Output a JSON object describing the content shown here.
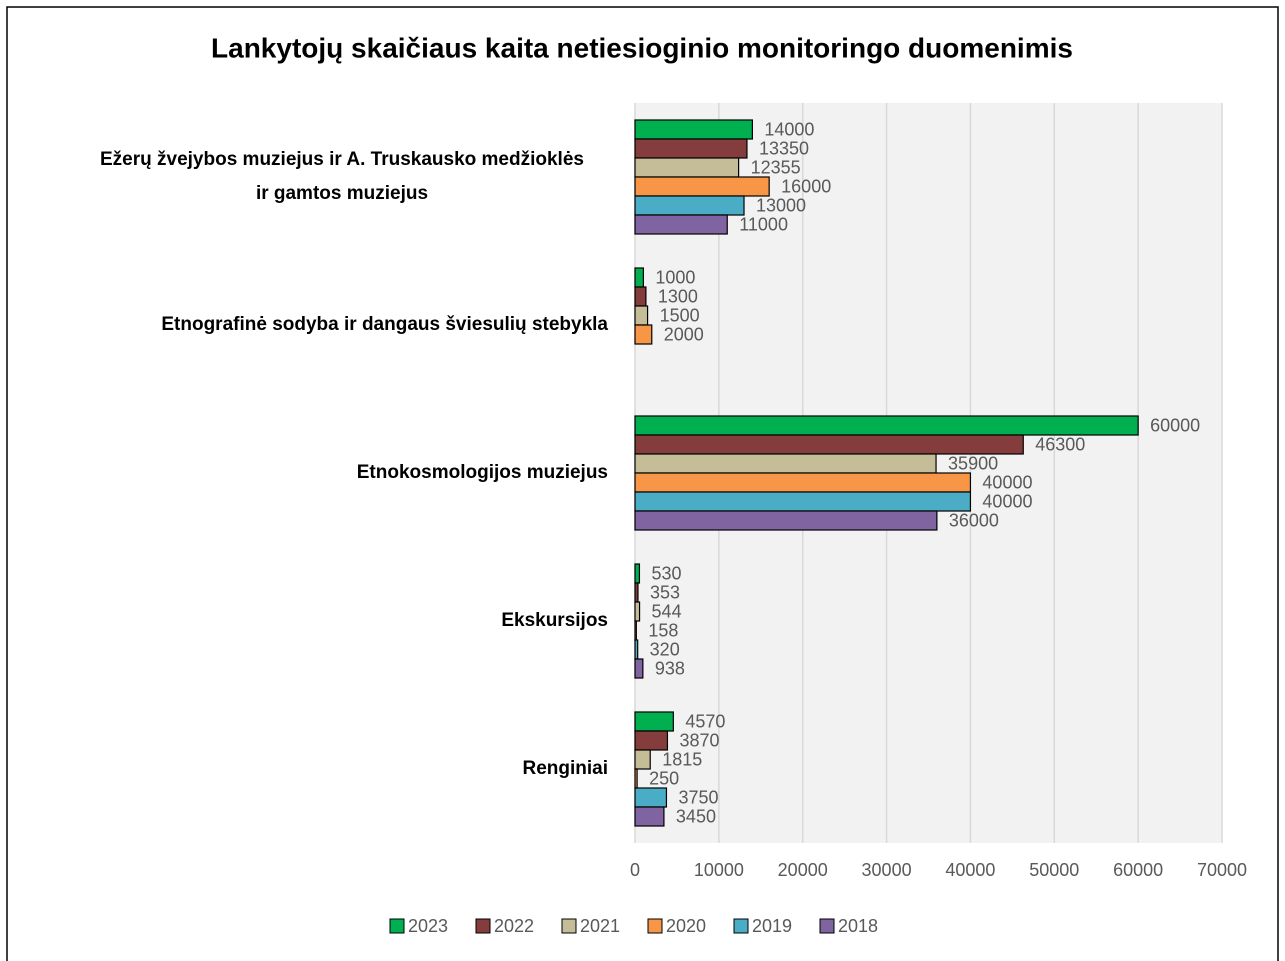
{
  "chart_data": {
    "type": "bar",
    "orientation": "horizontal",
    "title": "Lankytojų skaičiaus kaita netiesioginio monitoringo duomenimis",
    "categories": [
      "Ežerų žvejybos muziejus ir A. Truskausko medžioklės ir gamtos muziejus",
      "Etnografinė sodyba ir dangaus šviesulių stebykla",
      "Etnokosmologijos muziejus",
      "Ekskursijos",
      "Renginiai"
    ],
    "series": [
      {
        "name": "2023",
        "color": "#00b050",
        "values": [
          14000,
          1000,
          60000,
          530,
          4570
        ]
      },
      {
        "name": "2022",
        "color": "#843c3c",
        "values": [
          13350,
          1300,
          46300,
          353,
          3870
        ]
      },
      {
        "name": "2021",
        "color": "#c4bd97",
        "values": [
          12355,
          1500,
          35900,
          544,
          1815
        ]
      },
      {
        "name": "2020",
        "color": "#f79646",
        "values": [
          16000,
          2000,
          40000,
          158,
          250
        ]
      },
      {
        "name": "2019",
        "color": "#4bacc6",
        "values": [
          13000,
          null,
          40000,
          320,
          3750
        ]
      },
      {
        "name": "2018",
        "color": "#8064a2",
        "values": [
          11000,
          null,
          36000,
          938,
          3450
        ]
      }
    ],
    "xlim": [
      0,
      70000
    ],
    "xticks": [
      0,
      10000,
      20000,
      30000,
      40000,
      50000,
      60000,
      70000
    ],
    "grid": true,
    "legend": "bottom"
  }
}
